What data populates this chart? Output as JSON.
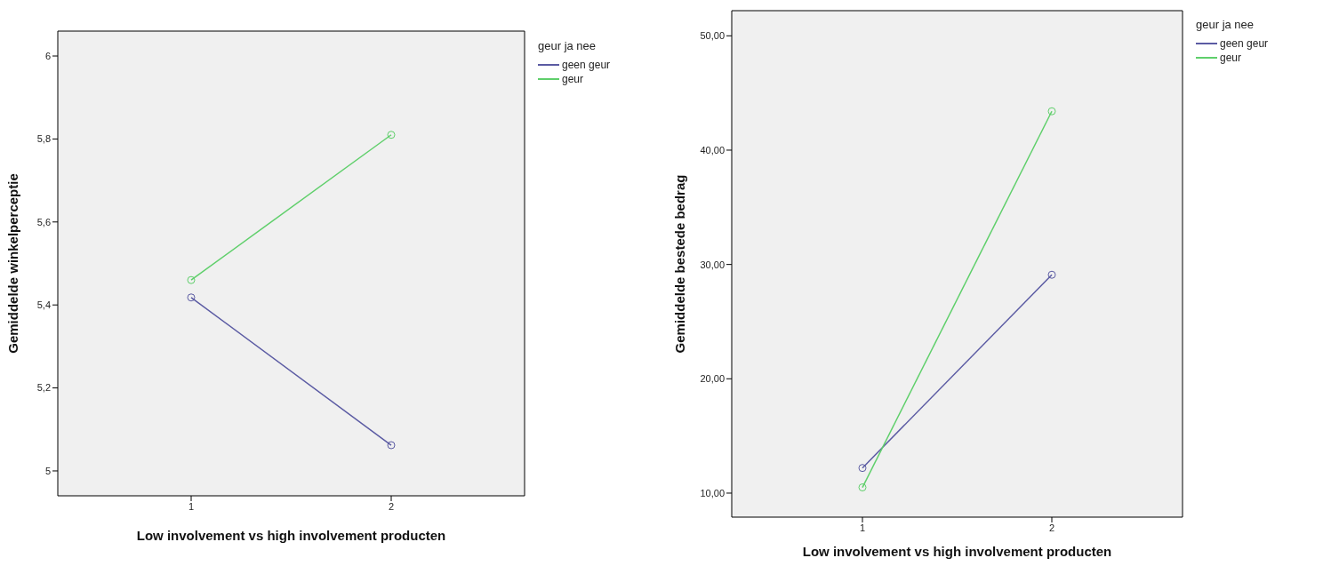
{
  "chart_data": [
    {
      "type": "line",
      "xlabel": "Low involvement vs high involvement producten",
      "ylabel": "Gemiddelde winkelperceptie",
      "legend_title": "geur ja nee",
      "categories": [
        "1",
        "2"
      ],
      "series": [
        {
          "name": "geen geur",
          "color": "#5b5ba3",
          "values": [
            5.418,
            5.062
          ]
        },
        {
          "name": "geur",
          "color": "#5fcf6b",
          "values": [
            5.46,
            5.81
          ]
        }
      ],
      "ylim": [
        4.94,
        6.06
      ],
      "yticks": [
        5,
        {
          "value": 5.2,
          "label": "5,2"
        },
        {
          "value": 5.4,
          "label": "5,4"
        },
        {
          "value": 5.6,
          "label": "5,6"
        },
        {
          "value": 5.8,
          "label": "5,8"
        },
        6
      ],
      "grid": false,
      "legend": "top right",
      "marker": "circle",
      "line_style": "solid"
    },
    {
      "type": "line",
      "xlabel": "Low involvement vs high involvement producten",
      "ylabel": "Gemiddelde bestede bedrag",
      "legend_title": "geur ja nee",
      "categories": [
        "1",
        "2"
      ],
      "series": [
        {
          "name": "geen geur",
          "color": "#5b5ba3",
          "values": [
            12.2,
            29.1
          ]
        },
        {
          "name": "geur",
          "color": "#5fcf6b",
          "values": [
            10.5,
            43.4
          ]
        }
      ],
      "ylim": [
        7.9,
        52.2
      ],
      "yticks": [
        {
          "value": 10,
          "label": "10,00"
        },
        {
          "value": 20,
          "label": "20,00"
        },
        {
          "value": 30,
          "label": "30,00"
        },
        {
          "value": 40,
          "label": "40,00"
        },
        {
          "value": 50,
          "label": "50,00"
        }
      ],
      "grid": false,
      "legend": "top right",
      "marker": "circle",
      "line_style": "solid"
    }
  ]
}
